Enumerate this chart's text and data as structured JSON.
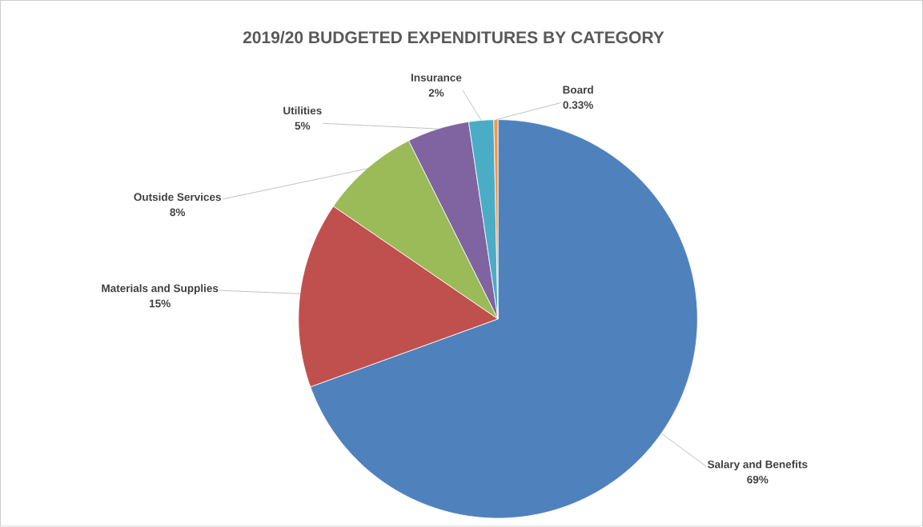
{
  "chart_data": {
    "type": "pie",
    "title": "2019/20 BUDGETED EXPENDITURES BY CATEGORY",
    "categories": [
      "Salary and Benefits",
      "Materials and Supplies",
      "Outside Services",
      "Utilities",
      "Insurance",
      "Board"
    ],
    "values": [
      69,
      15,
      8,
      5,
      2,
      0.33
    ],
    "value_labels": [
      "69%",
      "15%",
      "8%",
      "5%",
      "2%",
      "0.33%"
    ],
    "colors": [
      "#4f81bd",
      "#c0504d",
      "#9bbb59",
      "#8064a2",
      "#4bacc6",
      "#f79646"
    ],
    "legend": false
  }
}
